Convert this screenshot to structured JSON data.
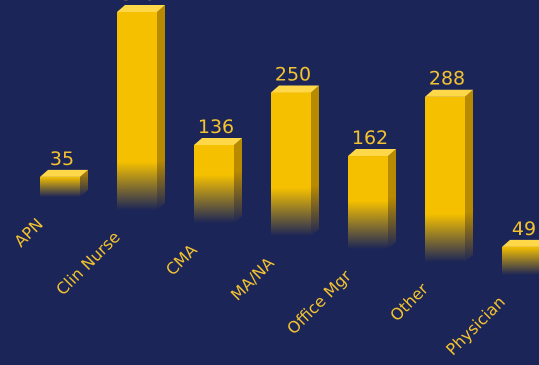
{
  "chart_data": {
    "type": "bar",
    "title": "",
    "xlabel": "",
    "ylabel": "",
    "categories": [
      "APN",
      "Clin Nurse",
      "CMA",
      "MA/NA",
      "Office Mgr",
      "Other",
      "Physician"
    ],
    "values": [
      35,
      345,
      136,
      250,
      162,
      288,
      49
    ],
    "ylim": [
      0,
      345
    ],
    "grid": false,
    "legend": "none",
    "colors": {
      "background": "#1c2557",
      "bar_front": "#f5c000",
      "bar_top": "#ffd84a",
      "bar_side": "#b88a00",
      "label": "#f2c230"
    }
  }
}
